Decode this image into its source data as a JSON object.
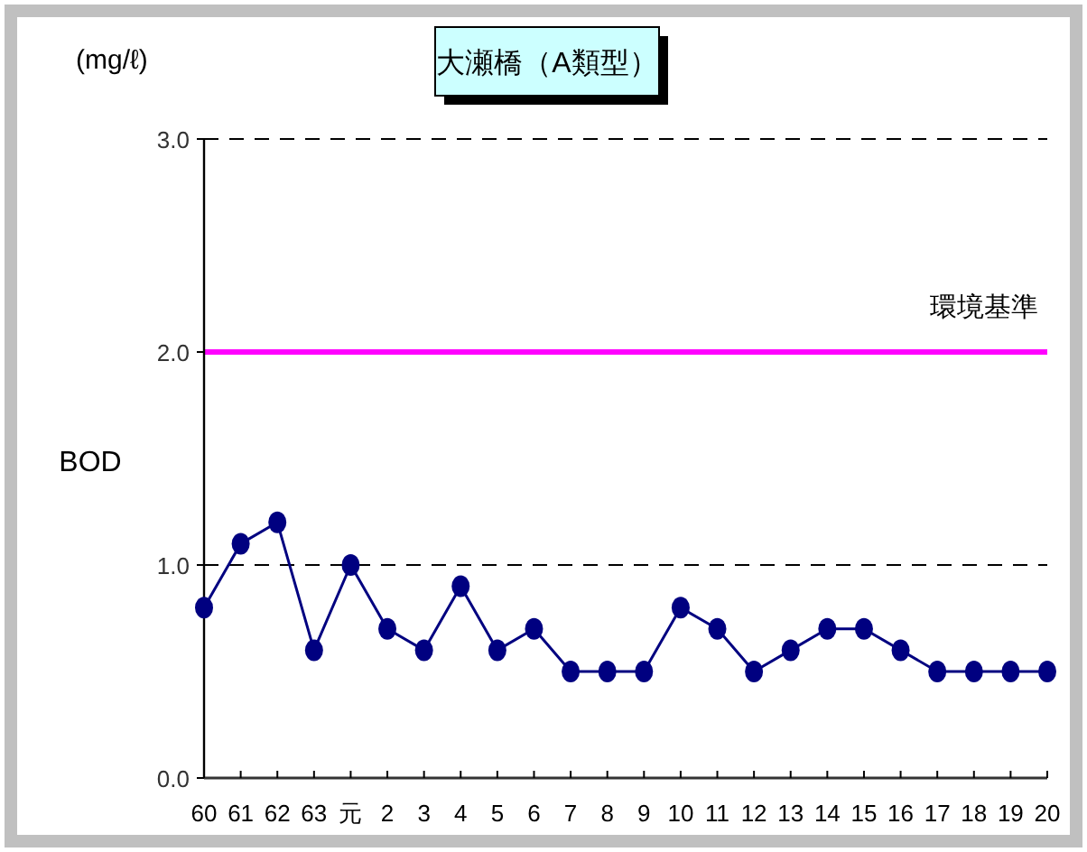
{
  "chart_data": {
    "type": "line",
    "title": "大瀬橋（A類型）",
    "ylabel": "BOD",
    "annotations": [
      "(mg/ℓ)"
    ],
    "categories": [
      "60",
      "61",
      "62",
      "63",
      "元",
      "2",
      "3",
      "4",
      "5",
      "6",
      "7",
      "8",
      "9",
      "10",
      "11",
      "12",
      "13",
      "14",
      "15",
      "16",
      "17",
      "18",
      "19",
      "20"
    ],
    "series": [
      {
        "color": "#000080",
        "values": [
          0.8,
          1.1,
          1.2,
          0.6,
          1.0,
          0.7,
          0.6,
          0.9,
          0.6,
          0.7,
          0.5,
          0.5,
          0.5,
          0.8,
          0.7,
          0.5,
          0.6,
          0.7,
          0.7,
          0.6,
          0.5,
          0.5,
          0.5,
          0.5
        ]
      }
    ],
    "ylim": [
      0,
      3
    ],
    "yticks": [
      {
        "value": 0,
        "label": "0.0"
      },
      {
        "value": 1,
        "label": "1.0"
      },
      {
        "value": 2,
        "label": "2.0"
      },
      {
        "value": 3,
        "label": "3.0"
      }
    ],
    "ref_lines": [
      {
        "axis": "y",
        "value": 2,
        "label": "環境基準",
        "color": "#ff00ff",
        "line_style": "solid"
      },
      {
        "axis": "y",
        "value": 1,
        "color": "#000000",
        "line_style": "dashed"
      },
      {
        "axis": "y",
        "value": 3,
        "color": "#000000",
        "line_style": "dashed"
      }
    ],
    "grid": false,
    "marker": "circle",
    "line_style": "solid"
  }
}
